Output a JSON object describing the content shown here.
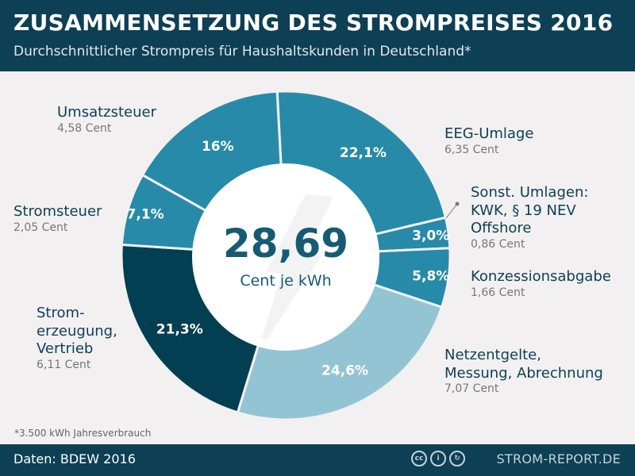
{
  "header": {
    "title": "ZUSAMMENSETZUNG DES STROMPREISES 2016",
    "subtitle": "Durchschnittlicher Strompreis für Haushaltskunden in Deutschland*"
  },
  "footer": {
    "source": "Daten: BDEW 2016",
    "brand": "STROM-REPORT.DE",
    "license_icons": [
      "cc-icon",
      "by-icon",
      "share-alike-icon"
    ]
  },
  "footnote": "*3.500 kWh Jahresverbrauch",
  "chart_data": {
    "type": "pie",
    "donut": true,
    "center": {
      "value": "28,69",
      "unit": "Cent je kWh"
    },
    "slices": [
      {
        "name": "EEG-Umlage",
        "lines": [
          "EEG-Umlage"
        ],
        "percent": 22.1,
        "percent_label": "22,1%",
        "value_label": "6,35 Cent",
        "cent": 6.35,
        "color": "#278aa8"
      },
      {
        "name": "Sonst. Umlagen: KWK, § 19 NEV Offshore",
        "lines": [
          "Sonst. Umlagen:",
          "KWK, § 19 NEV",
          "Offshore"
        ],
        "percent": 3.0,
        "percent_label": "3,0%",
        "value_label": "0,86 Cent",
        "cent": 0.86,
        "color": "#278aa8"
      },
      {
        "name": "Konzessionsabgabe",
        "lines": [
          "Konzessionsabgabe"
        ],
        "percent": 5.8,
        "percent_label": "5,8%",
        "value_label": "1,66 Cent",
        "cent": 1.66,
        "color": "#278aa8"
      },
      {
        "name": "Netzentgelte, Messung, Abrechnung",
        "lines": [
          "Netzentgelte,",
          "Messung, Abrechnung"
        ],
        "percent": 24.6,
        "percent_label": "24,6%",
        "value_label": "7,07 Cent",
        "cent": 7.07,
        "color": "#93c4d4"
      },
      {
        "name": "Stromerzeugung, Vertrieb",
        "lines": [
          "Strom-",
          "erzeugung,",
          "Vertrieb"
        ],
        "percent": 21.3,
        "percent_label": "21,3%",
        "value_label": "6,11 Cent",
        "cent": 6.11,
        "color": "#023f52"
      },
      {
        "name": "Stromsteuer",
        "lines": [
          "Stromsteuer"
        ],
        "percent": 7.1,
        "percent_label": "7,1%",
        "value_label": "2,05 Cent",
        "cent": 2.05,
        "color": "#278aa8"
      },
      {
        "name": "Umsatzsteuer",
        "lines": [
          "Umsatzsteuer"
        ],
        "percent": 16,
        "percent_label": "16%",
        "value_label": "4,58 Cent",
        "cent": 4.58,
        "color": "#278aa8"
      }
    ]
  }
}
